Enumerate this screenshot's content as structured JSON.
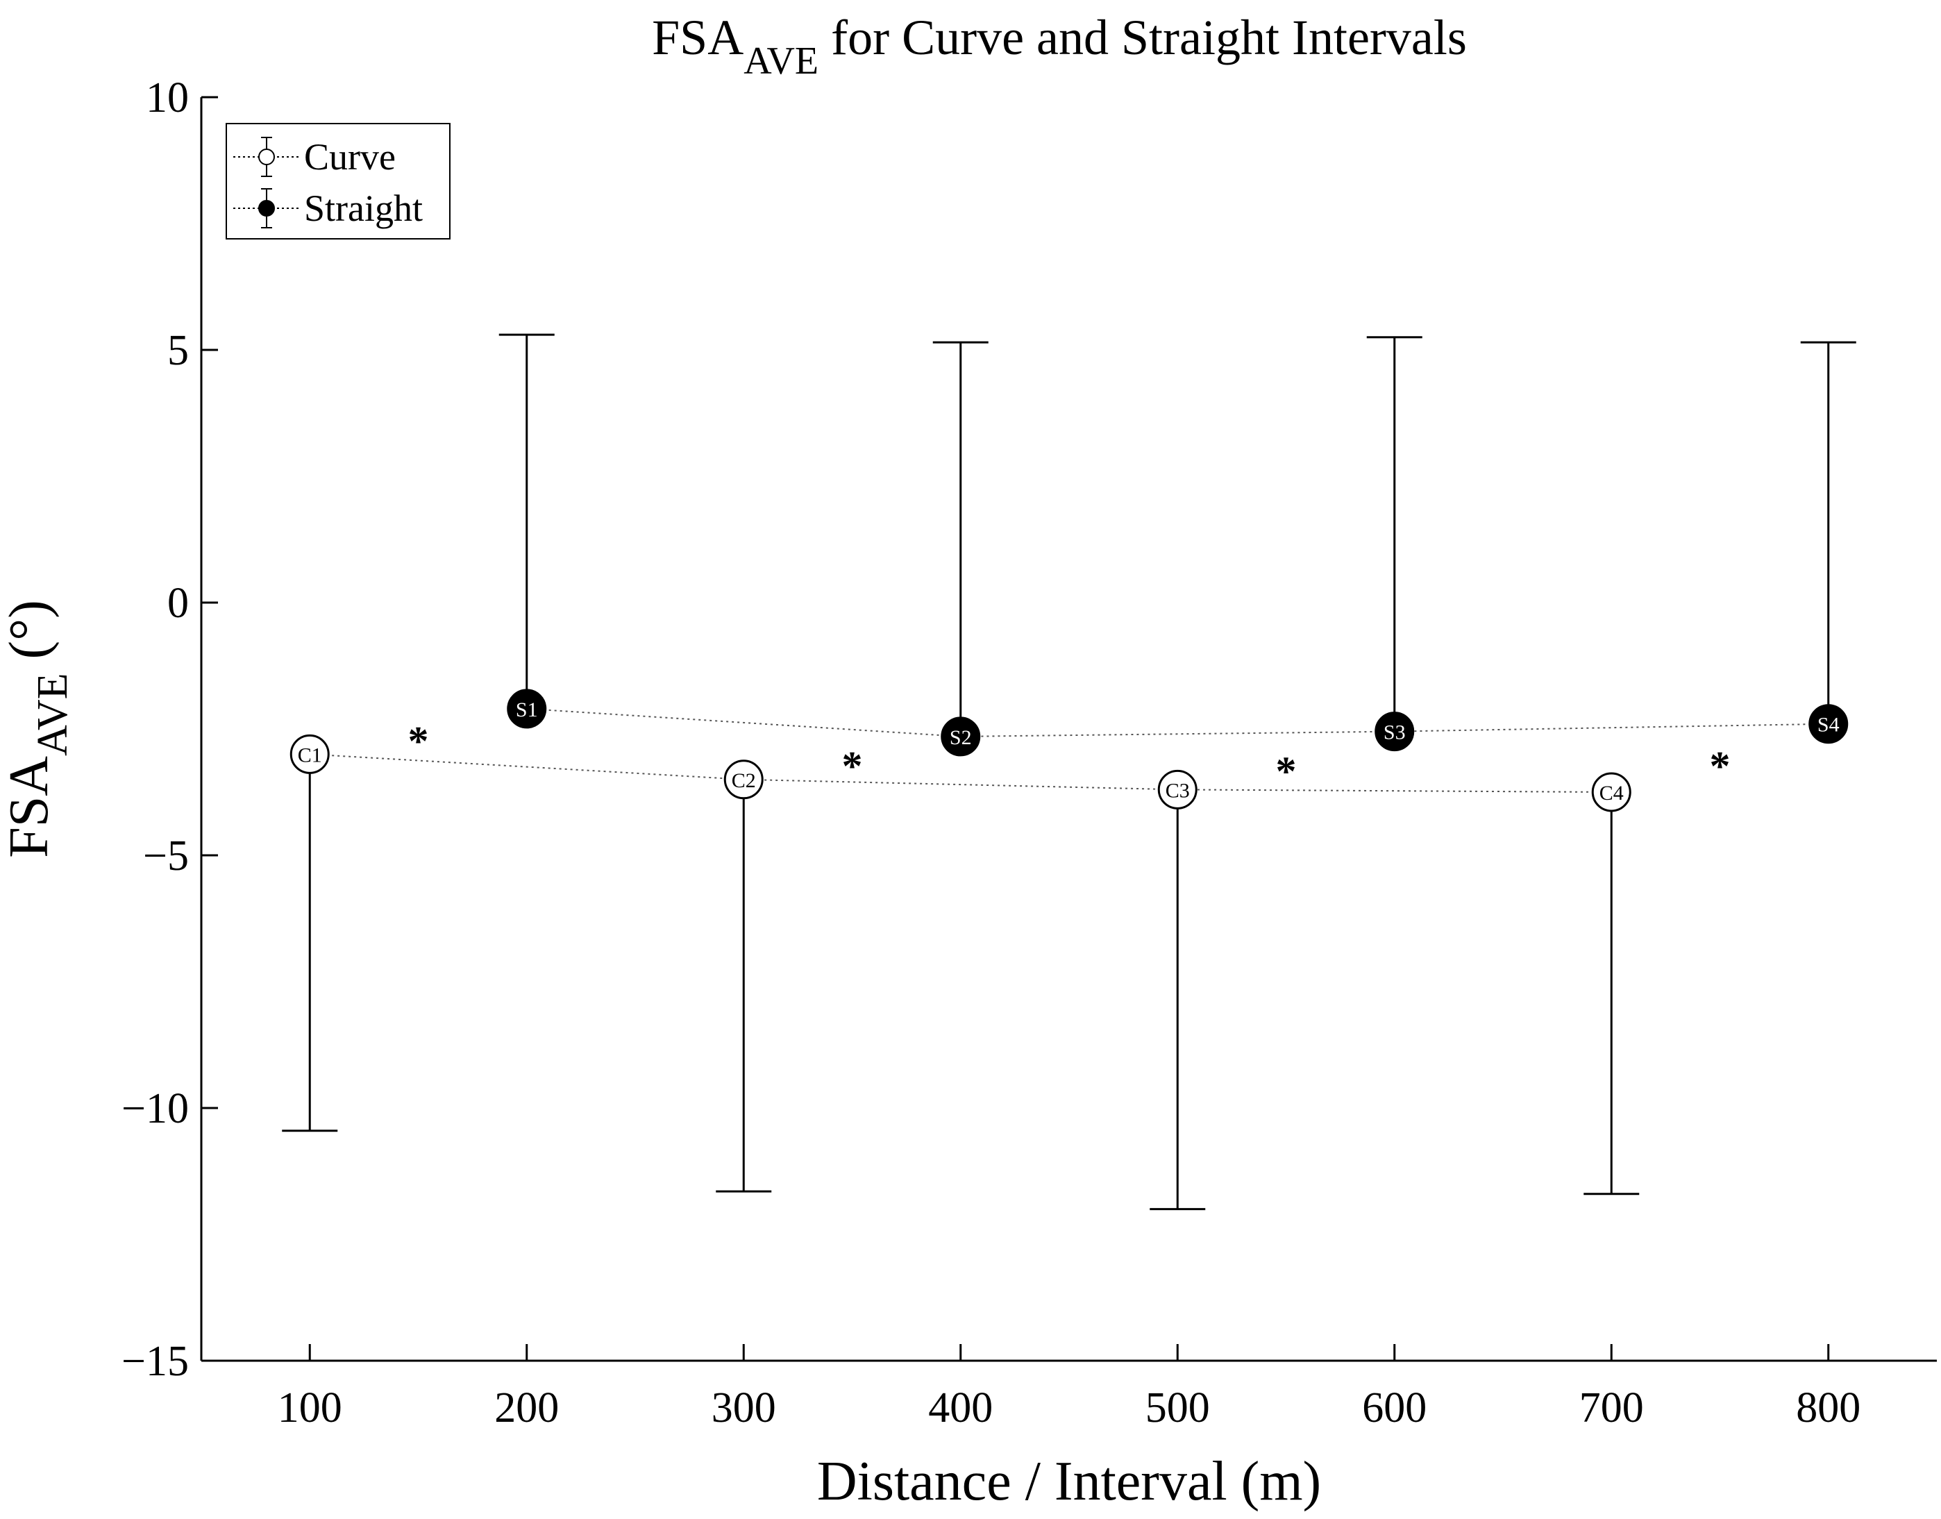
{
  "chart_data": {
    "type": "scatter",
    "title_main": "FSA",
    "title_sub": "AVE",
    "title_rest": " for Curve and Straight Intervals",
    "xlabel": "Distance / Interval (m)",
    "ylabel_main": "FSA",
    "ylabel_sub": "AVE",
    "ylabel_rest": " (°)",
    "xlim": [
      50,
      850
    ],
    "ylim": [
      -15,
      10
    ],
    "xticks": [
      100,
      200,
      300,
      400,
      500,
      600,
      700,
      800
    ],
    "xtick_labels": [
      "100",
      "200",
      "300",
      "400",
      "500",
      "600",
      "700",
      "800"
    ],
    "yticks": [
      10,
      5,
      0,
      -5,
      -10,
      -15
    ],
    "ytick_labels": [
      "10",
      "5",
      "0",
      "−5",
      "−10",
      "−15"
    ],
    "legend": {
      "position": "top-left",
      "entries": [
        "Curve",
        "Straight"
      ]
    },
    "series": [
      {
        "name": "Curve",
        "marker": "open-circle",
        "error_direction": "down",
        "points": [
          {
            "label": "C1",
            "x": 100,
            "y": -3.0,
            "sd": 7.45
          },
          {
            "label": "C2",
            "x": 300,
            "y": -3.5,
            "sd": 8.15
          },
          {
            "label": "C3",
            "x": 500,
            "y": -3.7,
            "sd": 8.3
          },
          {
            "label": "C4",
            "x": 700,
            "y": -3.75,
            "sd": 7.95
          }
        ]
      },
      {
        "name": "Straight",
        "marker": "filled-circle",
        "error_direction": "up",
        "points": [
          {
            "label": "S1",
            "x": 200,
            "y": -2.1,
            "sd": 7.4
          },
          {
            "label": "S2",
            "x": 400,
            "y": -2.65,
            "sd": 7.8
          },
          {
            "label": "S3",
            "x": 600,
            "y": -2.55,
            "sd": 7.8
          },
          {
            "label": "S4",
            "x": 800,
            "y": -2.4,
            "sd": 7.55
          }
        ]
      }
    ],
    "annotations": [
      {
        "text": "*",
        "x": 150,
        "y": -2.6
      },
      {
        "text": "*",
        "x": 350,
        "y": -3.1
      },
      {
        "text": "*",
        "x": 550,
        "y": -3.2
      },
      {
        "text": "*",
        "x": 750,
        "y": -3.1
      }
    ]
  }
}
